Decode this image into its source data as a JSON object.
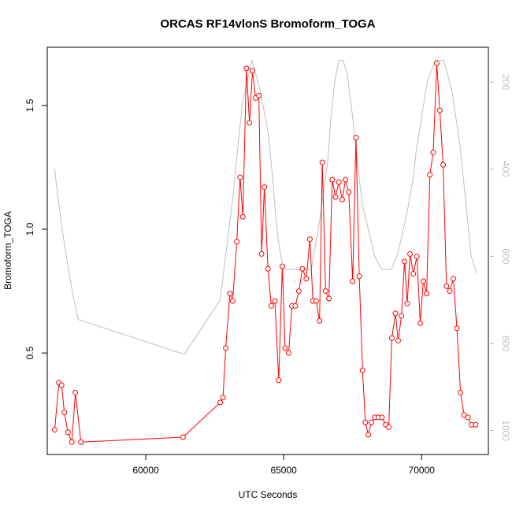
{
  "chart_data": {
    "type": "line",
    "title": "ORCAS RF14vlonS Bromoform_TOGA",
    "xlabel": "UTC Seconds",
    "ylabel": "Bromoform_TOGA",
    "xlim": [
      56430,
      72420
    ],
    "ylim": [
      0.09,
      1.735
    ],
    "x_ticks": [
      60000,
      65000,
      70000
    ],
    "y_ticks": [
      0.5,
      1.0,
      1.5
    ],
    "y_tick_labels": [
      "0.5",
      "1.0",
      "1.5"
    ],
    "grid": false,
    "series": [
      {
        "color": "#ff0000",
        "marker": "open-circle",
        "x": [
          56700,
          56850,
          56950,
          57050,
          57180,
          57320,
          57450,
          57650,
          61350,
          62700,
          62800,
          62900,
          63050,
          63150,
          63300,
          63420,
          63520,
          63650,
          63760,
          63870,
          63980,
          64100,
          64200,
          64300,
          64430,
          64550,
          64680,
          64820,
          64950,
          65050,
          65180,
          65300,
          65420,
          65550,
          65680,
          65820,
          65950,
          66060,
          66180,
          66300,
          66400,
          66520,
          66640,
          66760,
          66880,
          67000,
          67120,
          67240,
          67360,
          67500,
          67620,
          67740,
          67860,
          67960,
          68070,
          68180,
          68300,
          68430,
          68560,
          68700,
          68810,
          68920,
          69050,
          69150,
          69270,
          69380,
          69480,
          69580,
          69700,
          69830,
          69950,
          70060,
          70180,
          70300,
          70420,
          70550,
          70660,
          70780,
          70900,
          71020,
          71150,
          71280,
          71410,
          71540,
          71680,
          71810,
          71960
        ],
        "y": [
          0.19,
          0.38,
          0.37,
          0.26,
          0.18,
          0.14,
          0.34,
          0.14,
          0.16,
          0.3,
          0.32,
          0.52,
          0.74,
          0.71,
          0.95,
          1.21,
          1.05,
          1.65,
          1.43,
          1.64,
          1.53,
          1.54,
          0.9,
          1.17,
          0.84,
          0.69,
          0.71,
          0.39,
          0.85,
          0.52,
          0.5,
          0.69,
          0.69,
          0.75,
          0.84,
          0.8,
          0.96,
          0.71,
          0.71,
          0.63,
          1.27,
          0.75,
          0.72,
          1.2,
          1.13,
          1.19,
          1.12,
          1.2,
          1.15,
          0.79,
          1.37,
          0.81,
          0.43,
          0.22,
          0.17,
          0.22,
          0.24,
          0.24,
          0.24,
          0.21,
          0.2,
          0.56,
          0.66,
          0.55,
          0.65,
          0.87,
          0.7,
          0.9,
          0.82,
          0.89,
          0.62,
          0.79,
          0.74,
          1.22,
          1.31,
          1.67,
          1.48,
          1.26,
          0.77,
          0.75,
          0.8,
          0.6,
          0.34,
          0.25,
          0.24,
          0.21,
          0.21
        ]
      },
      {
        "color": "#bebebe",
        "marker": "none",
        "axis": "right",
        "x": [
          56700,
          56750,
          56850,
          56950,
          57100,
          57250,
          57400,
          57550,
          61400,
          62700,
          63150,
          63500,
          63850,
          64150,
          64450,
          64600,
          64700,
          64800,
          64900,
          65000,
          65100,
          65300,
          65500,
          65700,
          66000,
          66300,
          66600,
          66700,
          66850,
          67000,
          67150,
          67300,
          67500,
          67700,
          67850,
          68000,
          68300,
          68550,
          68700,
          68900,
          69100,
          69300,
          69500,
          69700,
          69800,
          70000,
          70200,
          70500,
          70800,
          71100,
          71400,
          71800,
          72000
        ],
        "y": [
          400,
          430,
          480,
          530,
          590,
          650,
          700,
          745,
          825,
          700,
          470,
          250,
          150,
          220,
          320,
          420,
          500,
          560,
          600,
          630,
          630,
          630,
          630,
          630,
          630,
          520,
          380,
          290,
          200,
          150,
          150,
          180,
          280,
          400,
          480,
          520,
          600,
          630,
          630,
          630,
          600,
          550,
          490,
          420,
          360,
          280,
          200,
          150,
          150,
          220,
          350,
          600,
          640
        ]
      }
    ],
    "right_axis": {
      "ylim": [
        1055,
        120
      ],
      "ticks": [
        200,
        400,
        600,
        800,
        1000
      ],
      "tick_labels": [
        "200",
        "400",
        "600",
        "800",
        "1000"
      ],
      "color": "#bebebe"
    }
  }
}
